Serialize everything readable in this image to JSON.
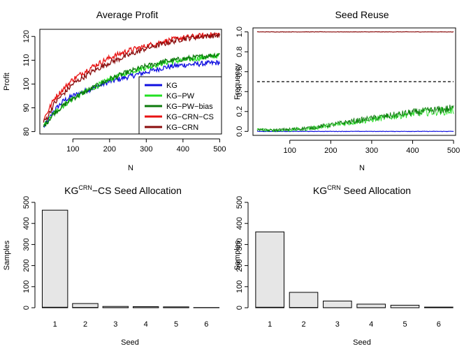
{
  "chart_data": [
    {
      "type": "line",
      "title": "Average Profit",
      "xlabel": "N",
      "ylabel": "Profit",
      "xlim": [
        10,
        505
      ],
      "ylim": [
        79,
        123
      ],
      "xticks": [
        "100",
        "200",
        "300",
        "400",
        "500"
      ],
      "yticks": [
        "80",
        "90",
        "100",
        "110",
        "120"
      ],
      "legend_position": "bottom-right",
      "series": [
        {
          "name": "KG",
          "color": "#1010e0",
          "x": [
            20,
            30,
            50,
            75,
            100,
            150,
            200,
            250,
            300,
            350,
            400,
            450,
            500
          ],
          "y": [
            82,
            84,
            89,
            93,
            95,
            98,
            101,
            103,
            105,
            107,
            108,
            108.5,
            109
          ]
        },
        {
          "name": "KG−PW",
          "color": "#22e022",
          "x": [
            20,
            30,
            50,
            75,
            100,
            150,
            200,
            250,
            300,
            350,
            400,
            450,
            500
          ],
          "y": [
            82,
            84,
            88,
            91,
            94,
            98,
            102,
            105,
            107,
            109,
            110,
            111,
            112
          ]
        },
        {
          "name": "KG−PW−bias",
          "color": "#0c7a0c",
          "x": [
            20,
            30,
            50,
            75,
            100,
            150,
            200,
            250,
            300,
            350,
            400,
            450,
            500
          ],
          "y": [
            82,
            84,
            88,
            91,
            94,
            98,
            102,
            105,
            107.5,
            109.5,
            110.5,
            111.5,
            112.5
          ]
        },
        {
          "name": "KG−CRN−CS",
          "color": "#e81212",
          "x": [
            20,
            30,
            50,
            75,
            100,
            150,
            200,
            250,
            300,
            350,
            400,
            450,
            500
          ],
          "y": [
            85,
            88,
            94,
            98,
            102,
            107,
            111,
            114,
            116,
            118,
            119.5,
            120.3,
            121
          ]
        },
        {
          "name": "KG−CRN",
          "color": "#8a0c0c",
          "x": [
            20,
            30,
            50,
            75,
            100,
            150,
            200,
            250,
            300,
            350,
            400,
            450,
            500
          ],
          "y": [
            84,
            86,
            92,
            96,
            100,
            105,
            109,
            112,
            115,
            117,
            119,
            120,
            120.5
          ]
        }
      ]
    },
    {
      "type": "line",
      "title": "Seed Reuse",
      "xlabel": "N",
      "ylabel": "Frequency",
      "xlim": [
        10,
        505
      ],
      "ylim": [
        -0.04,
        1.04
      ],
      "xticks": [
        "100",
        "200",
        "300",
        "400",
        "500"
      ],
      "yticks": [
        "0.0",
        "0.2",
        "0.4",
        "0.6",
        "0.8",
        "1.0"
      ],
      "series": [
        {
          "color": "#8a0c0c",
          "x": [
            20,
            500
          ],
          "y": [
            1.0,
            1.0
          ]
        },
        {
          "color": "#000000",
          "dash": true,
          "x": [
            20,
            500
          ],
          "y": [
            0.5,
            0.5
          ]
        },
        {
          "color": "#1010e0",
          "x": [
            20,
            500
          ],
          "y": [
            0.0,
            0.0
          ]
        },
        {
          "color": "#22e022",
          "x": [
            20,
            50,
            100,
            150,
            200,
            250,
            300,
            350,
            400,
            450,
            500
          ],
          "y": [
            0.02,
            0.01,
            0.015,
            0.03,
            0.06,
            0.09,
            0.12,
            0.15,
            0.18,
            0.2,
            0.21
          ]
        },
        {
          "color": "#0c7a0c",
          "x": [
            20,
            50,
            100,
            150,
            200,
            250,
            300,
            350,
            400,
            450,
            500
          ],
          "y": [
            0.02,
            0.01,
            0.02,
            0.035,
            0.065,
            0.1,
            0.13,
            0.16,
            0.19,
            0.21,
            0.23
          ]
        }
      ]
    },
    {
      "type": "bar",
      "title_main": "KG",
      "title_sup": "CRN",
      "title_rest": "−CS Seed Allocation",
      "xlabel": "Seed",
      "ylabel": "Samples",
      "ylim": [
        0,
        500
      ],
      "yticks": [
        "0",
        "100",
        "200",
        "300",
        "400",
        "500"
      ],
      "categories": [
        "1",
        "2",
        "3",
        "4",
        "5",
        "6"
      ],
      "values": [
        463,
        20,
        6,
        5,
        4,
        1
      ],
      "overlay_values": [
        4,
        3,
        2,
        2,
        1,
        1
      ]
    },
    {
      "type": "bar",
      "title_main": "KG",
      "title_sup": "CRN",
      "title_rest": " Seed Allocation",
      "xlabel": "Seed",
      "ylabel": "Samples",
      "ylim": [
        0,
        500
      ],
      "yticks": [
        "0",
        "100",
        "200",
        "300",
        "400",
        "500"
      ],
      "categories": [
        "1",
        "2",
        "3",
        "4",
        "5",
        "6"
      ],
      "values": [
        360,
        73,
        32,
        17,
        12,
        3
      ],
      "overlay_values": [
        4,
        3,
        2,
        2,
        1,
        1
      ]
    }
  ]
}
